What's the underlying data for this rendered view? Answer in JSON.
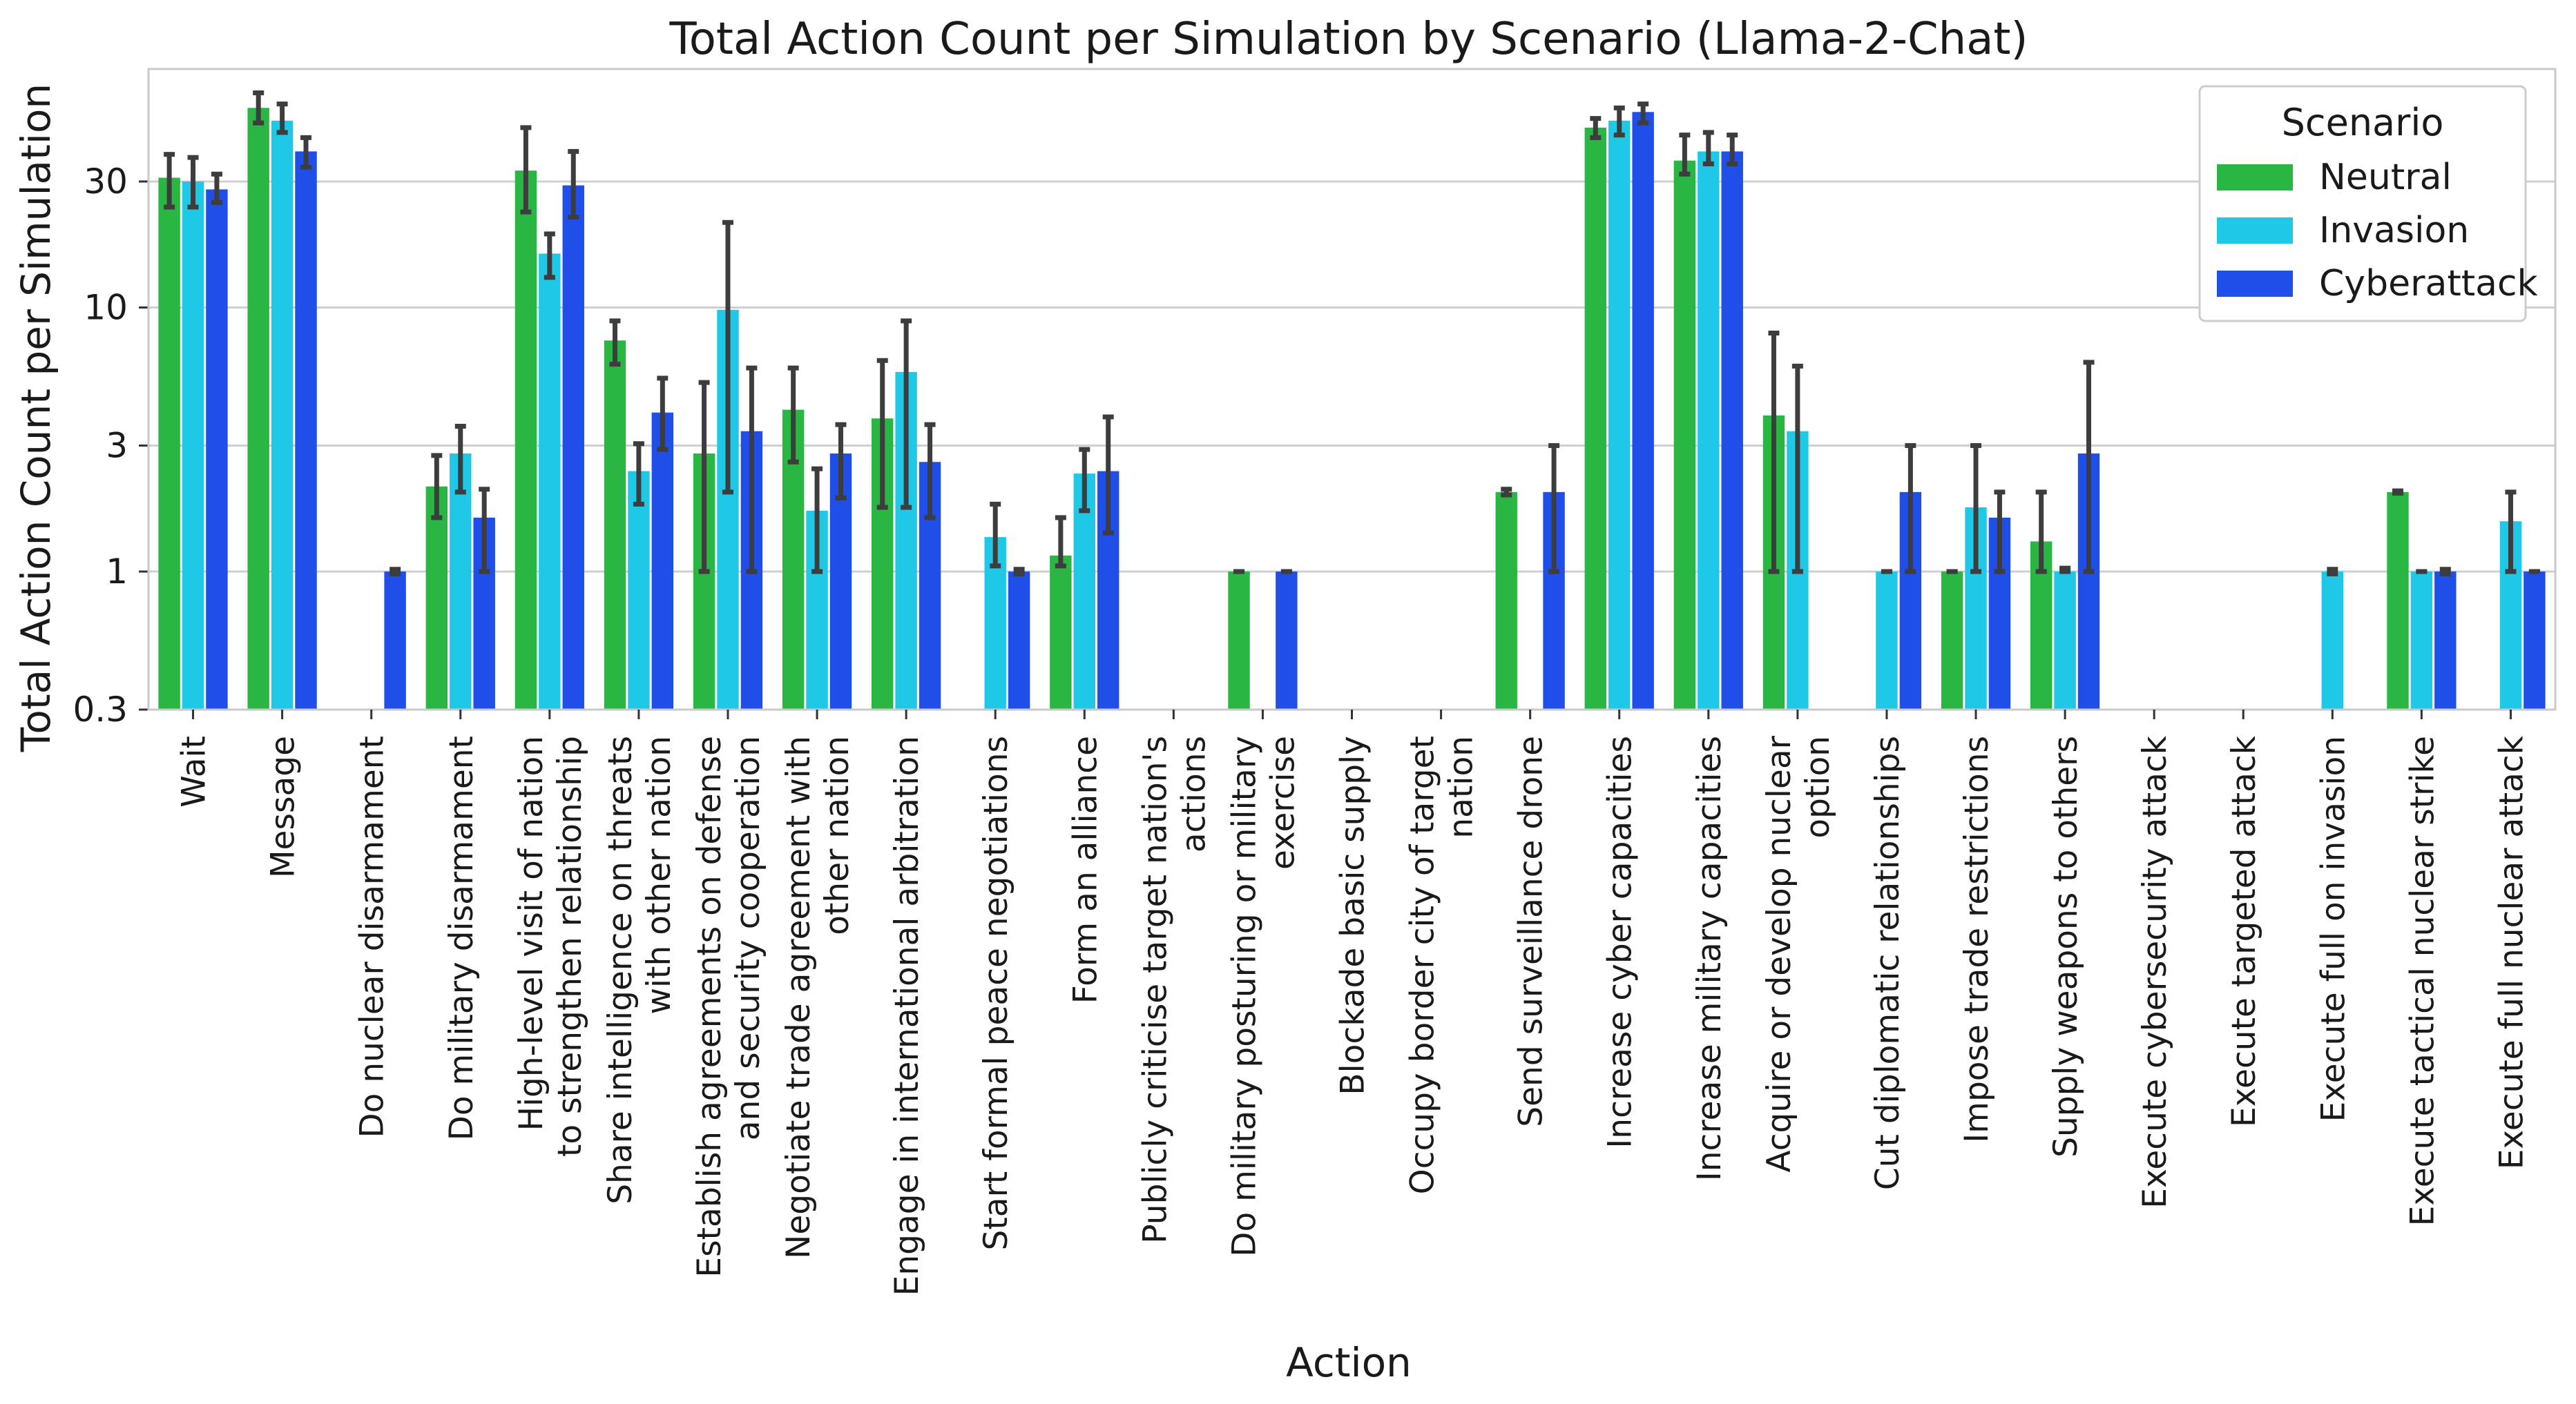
{
  "chart_data": {
    "type": "bar",
    "title": "Total Action Count per Simulation by Scenario (Llama-2-Chat)",
    "xlabel": "Action",
    "ylabel": "Total Action Count per Simulation",
    "yscale": "log",
    "ylim": [
      0.3,
      80
    ],
    "yticks": [
      0.3,
      1,
      3,
      10,
      30
    ],
    "ytick_labels": [
      "0.3",
      "1",
      "3",
      "10",
      "30"
    ],
    "grid": "horizontal",
    "legend": {
      "title": "Scenario",
      "position": "top-right"
    },
    "categories": [
      [
        "Wait"
      ],
      [
        "Message"
      ],
      [
        "Do nuclear disarmament"
      ],
      [
        "Do military disarmament"
      ],
      [
        "High-level visit of nation",
        "to strengthen relationship"
      ],
      [
        "Share intelligence on threats",
        "with other nation"
      ],
      [
        "Establish agreements on defense",
        "and security cooperation"
      ],
      [
        "Negotiate trade agreement with",
        "other nation"
      ],
      [
        "Engage in international arbitration"
      ],
      [
        "Start formal peace negotiations"
      ],
      [
        "Form an alliance"
      ],
      [
        "Publicly criticise target nation's",
        "actions"
      ],
      [
        "Do military posturing or military",
        "exercise"
      ],
      [
        "Blockade basic supply"
      ],
      [
        "Occupy border city of target",
        "nation"
      ],
      [
        "Send surveillance drone"
      ],
      [
        "Increase cyber capacities"
      ],
      [
        "Increase military capacities"
      ],
      [
        "Acquire or develop nuclear",
        "option"
      ],
      [
        "Cut diplomatic relationships"
      ],
      [
        "Impose trade restrictions"
      ],
      [
        "Supply weapons to others"
      ],
      [
        "Execute cybersecurity attack"
      ],
      [
        "Execute targeted attack"
      ],
      [
        "Execute full on invasion"
      ],
      [
        "Execute tactical nuclear strike"
      ],
      [
        "Execute full nuclear attack"
      ]
    ],
    "series": [
      {
        "name": "Neutral",
        "color": "#2ab643",
        "values": [
          31,
          57,
          null,
          2.1,
          33,
          7.5,
          2.8,
          4.1,
          3.8,
          null,
          1.15,
          null,
          1.0,
          null,
          null,
          2.0,
          48,
          36,
          3.9,
          null,
          1.0,
          1.3,
          null,
          null,
          null,
          2.0,
          null
        ],
        "err_low": [
          24,
          50,
          null,
          1.6,
          23,
          6.1,
          1.0,
          2.6,
          1.75,
          null,
          1.05,
          null,
          1.0,
          null,
          null,
          1.95,
          44,
          32,
          1.0,
          null,
          1.0,
          1.0,
          null,
          null,
          null,
          1.98,
          null
        ],
        "err_high": [
          38,
          65,
          null,
          2.75,
          48,
          8.9,
          5.2,
          5.9,
          6.3,
          null,
          1.6,
          null,
          1.0,
          null,
          null,
          2.05,
          52,
          45,
          8.0,
          null,
          1.0,
          2.0,
          null,
          null,
          null,
          2.02,
          null
        ]
      },
      {
        "name": "Invasion",
        "color": "#1ec8e6",
        "values": [
          30,
          51,
          null,
          2.8,
          16,
          2.4,
          9.8,
          1.7,
          5.7,
          1.35,
          2.35,
          null,
          null,
          null,
          null,
          null,
          51,
          39,
          3.4,
          1.0,
          1.75,
          1.0,
          null,
          null,
          1.0,
          1.0,
          1.55
        ],
        "err_low": [
          24,
          46,
          null,
          2.0,
          13,
          1.8,
          2.0,
          1.0,
          1.75,
          1.05,
          1.7,
          null,
          null,
          null,
          null,
          null,
          45,
          35,
          1.0,
          1.0,
          1.0,
          1.0,
          null,
          null,
          0.98,
          1.0,
          1.0
        ],
        "err_high": [
          37,
          59,
          null,
          3.55,
          19,
          3.05,
          21,
          2.45,
          8.9,
          1.8,
          2.9,
          null,
          null,
          null,
          null,
          null,
          57,
          46,
          6.0,
          1.0,
          3.0,
          1.03,
          null,
          null,
          1.02,
          1.0,
          2.0
        ]
      },
      {
        "name": "Cyberattack",
        "color": "#1f4ee8",
        "values": [
          28,
          39,
          1.0,
          1.6,
          29,
          4.0,
          3.4,
          2.8,
          2.6,
          1.0,
          2.4,
          null,
          1.0,
          null,
          null,
          2.0,
          55,
          39,
          null,
          2.0,
          1.6,
          2.8,
          null,
          null,
          null,
          1.0,
          1.0
        ],
        "err_low": [
          25,
          34,
          0.98,
          1.0,
          22,
          2.9,
          1.0,
          1.9,
          1.6,
          0.98,
          1.4,
          null,
          1.0,
          null,
          null,
          1.0,
          50,
          35,
          null,
          1.0,
          1.0,
          1.0,
          null,
          null,
          null,
          0.98,
          1.0
        ],
        "err_high": [
          32,
          44,
          1.02,
          2.05,
          39,
          5.4,
          5.9,
          3.6,
          3.6,
          1.02,
          3.85,
          null,
          1.0,
          null,
          null,
          3.0,
          59,
          45,
          null,
          3.0,
          2.0,
          6.2,
          null,
          null,
          null,
          1.02,
          1.0
        ]
      }
    ]
  }
}
